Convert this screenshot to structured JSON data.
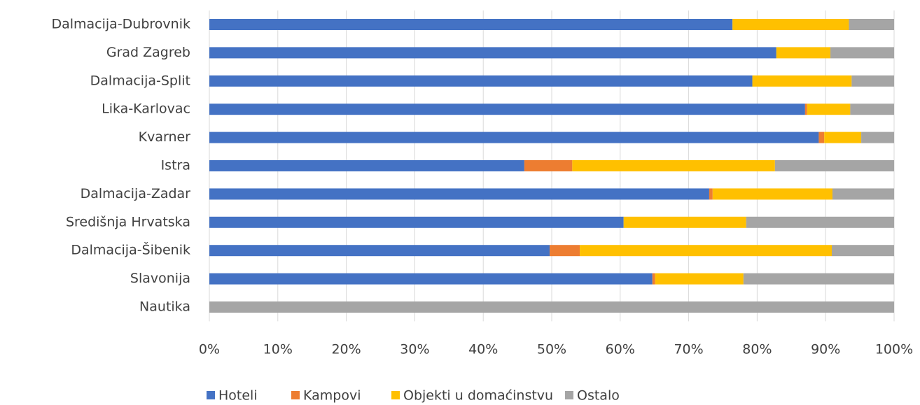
{
  "chart_data": {
    "type": "stacked-barh",
    "categories": [
      "Dalmacija-Dubrovnik",
      "Grad Zagreb",
      "Dalmacija-Split",
      "Lika-Karlovac",
      "Kvarner",
      "Istra",
      "Dalmacija-Zadar",
      "Središnja Hrvatska",
      "Dalmacija-Šibenik",
      "Slavonija",
      "Nautika"
    ],
    "series": [
      {
        "name": "Hoteli",
        "color": "#4472c4",
        "values": [
          76.4,
          82.8,
          79.3,
          87.0,
          89.0,
          46.0,
          73.0,
          60.5,
          49.7,
          64.7,
          0
        ]
      },
      {
        "name": "Kampovi",
        "color": "#ed7d31",
        "values": [
          0,
          0,
          0,
          0.3,
          0.8,
          7.0,
          0.5,
          0,
          4.4,
          0.4,
          0
        ]
      },
      {
        "name": "Objekti u domaćinstvu",
        "color": "#ffc000",
        "values": [
          17.0,
          7.9,
          14.5,
          6.3,
          5.4,
          29.6,
          17.5,
          17.9,
          36.8,
          12.9,
          0
        ]
      },
      {
        "name": "Ostalo",
        "color": "#a5a5a5",
        "values": [
          6.6,
          9.3,
          6.2,
          6.4,
          4.8,
          17.4,
          9.0,
          21.6,
          9.1,
          22.0,
          100
        ]
      }
    ],
    "xlim": [
      0,
      100
    ],
    "xticks": [
      {
        "value": 0,
        "label": "0%"
      },
      {
        "value": 10,
        "label": "10%"
      },
      {
        "value": 20,
        "label": "20%"
      },
      {
        "value": 30,
        "label": "30%"
      },
      {
        "value": 40,
        "label": "40%"
      },
      {
        "value": 50,
        "label": "50%"
      },
      {
        "value": 60,
        "label": "60%"
      },
      {
        "value": 70,
        "label": "70%"
      },
      {
        "value": 80,
        "label": "80%"
      },
      {
        "value": 90,
        "label": "90%"
      },
      {
        "value": 100,
        "label": "100%"
      }
    ],
    "grid": true,
    "legend": "bottom"
  }
}
